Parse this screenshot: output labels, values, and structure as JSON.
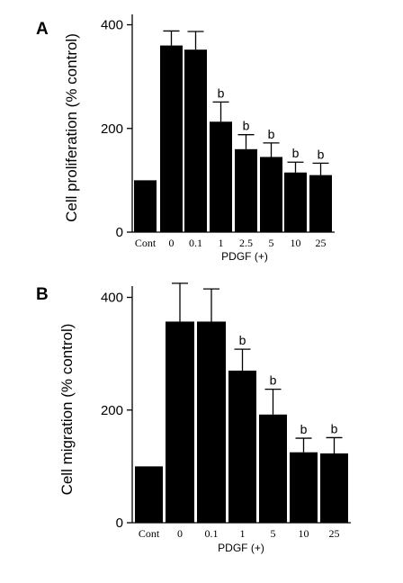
{
  "chart_data": [
    {
      "type": "bar",
      "panel": "A",
      "ylabel": "Cell proliferation (% control)",
      "xlabel": "PDGF (+)",
      "categories": [
        "Cont",
        "0",
        "0.1",
        "1",
        "2.5",
        "5",
        "10",
        "25"
      ],
      "values": [
        100,
        360,
        352,
        213,
        160,
        145,
        115,
        110
      ],
      "errors": [
        0,
        28,
        35,
        38,
        28,
        27,
        20,
        23
      ],
      "significance": [
        "",
        "",
        "",
        "b",
        "b",
        "b",
        "b",
        "b"
      ],
      "ylim": [
        0,
        420
      ],
      "yticks": [
        0,
        200,
        400
      ],
      "grid": false,
      "bar_color": "#000000"
    },
    {
      "type": "bar",
      "panel": "B",
      "ylabel": "Cell migration (% control)",
      "xlabel": "PDGF (+)",
      "categories": [
        "Cont",
        "0",
        "0.1",
        "1",
        "5",
        "10",
        "25"
      ],
      "values": [
        100,
        357,
        357,
        270,
        192,
        125,
        123
      ],
      "errors": [
        0,
        68,
        58,
        38,
        45,
        25,
        28
      ],
      "significance": [
        "",
        "",
        "",
        "b",
        "b",
        "b",
        "b"
      ],
      "ylim": [
        0,
        420
      ],
      "yticks": [
        0,
        200,
        400
      ],
      "grid": false,
      "bar_color": "#000000"
    }
  ]
}
